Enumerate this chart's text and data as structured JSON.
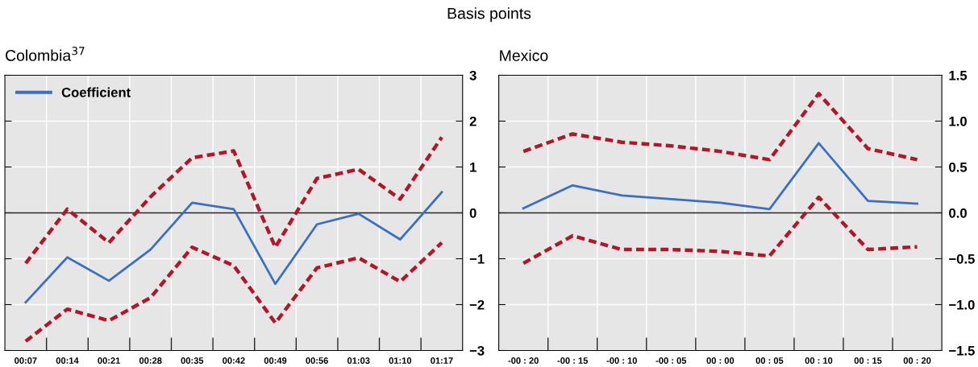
{
  "chart_data": [
    {
      "type": "line",
      "title": "Colombia$^{37}$",
      "annotations": [
        "Basis points"
      ],
      "categories": [
        "00:07",
        "00:14",
        "00:21",
        "00:28",
        "00:35",
        "00:42",
        "00:49",
        "00:56",
        "01:03",
        "01:10",
        "01:17"
      ],
      "series": [
        {
          "name": "Coefficient",
          "color": "#3a6fc4",
          "line_style": "solid",
          "values": [
            -1.95,
            -0.97,
            -1.48,
            -0.8,
            0.22,
            0.08,
            -1.55,
            -0.25,
            -0.02,
            -0.58,
            0.45
          ]
        },
        {
          "color": "#b0182a",
          "line_style": "dashed",
          "values": [
            -1.1,
            0.08,
            -0.65,
            0.35,
            1.2,
            1.35,
            -0.75,
            0.75,
            0.95,
            0.3,
            1.65
          ]
        },
        {
          "color": "#b0182a",
          "line_style": "dashed",
          "values": [
            -2.8,
            -2.1,
            -2.35,
            -1.85,
            -0.75,
            -1.15,
            -2.4,
            -1.2,
            -0.98,
            -1.5,
            -0.65
          ]
        }
      ],
      "ylim": [
        -3,
        3
      ],
      "yticks": [
        {
          "value": -3,
          "label": "−3"
        },
        {
          "value": -2,
          "label": "−2"
        },
        {
          "value": -1,
          "label": "−1"
        },
        0,
        1,
        2,
        3
      ],
      "ref_lines": [
        {
          "axis": "y",
          "value": 0,
          "color": "#222222"
        }
      ],
      "grid": true,
      "legend": "top left"
    },
    {
      "type": "line",
      "title": "Mexico",
      "categories": [
        "-00 : 20",
        "-00 : 15",
        "-00 : 10",
        "-00 : 05",
        "00 : 00",
        "00 : 05",
        "00 : 10",
        "00 : 15",
        "00 : 20"
      ],
      "series": [
        {
          "color": "#3a6fc4",
          "line_style": "solid",
          "values": [
            0.05,
            0.3,
            0.19,
            0.15,
            0.11,
            0.04,
            0.76,
            0.13,
            0.1
          ]
        },
        {
          "color": "#b0182a",
          "line_style": "dashed",
          "values": [
            0.67,
            0.86,
            0.77,
            0.73,
            0.67,
            0.58,
            1.3,
            0.7,
            0.58
          ]
        },
        {
          "color": "#b0182a",
          "line_style": "dashed",
          "values": [
            -0.55,
            -0.25,
            -0.4,
            -0.4,
            -0.42,
            -0.47,
            0.17,
            -0.4,
            -0.37
          ]
        }
      ],
      "ylim": [
        -1.5,
        1.5
      ],
      "yticks": [
        {
          "value": -1.5,
          "label": "−1.5"
        },
        {
          "value": -1.0,
          "label": "−1.0"
        },
        {
          "value": -0.5,
          "label": "−0.5"
        },
        {
          "value": 0,
          "label": "0.0"
        },
        {
          "value": 0.5,
          "label": "0.5"
        },
        {
          "value": 1.0,
          "label": "1.0"
        },
        {
          "value": 1.5,
          "label": "1.5"
        }
      ],
      "ref_lines": [
        {
          "axis": "y",
          "value": 0,
          "color": "#222222"
        }
      ],
      "grid": true
    }
  ]
}
